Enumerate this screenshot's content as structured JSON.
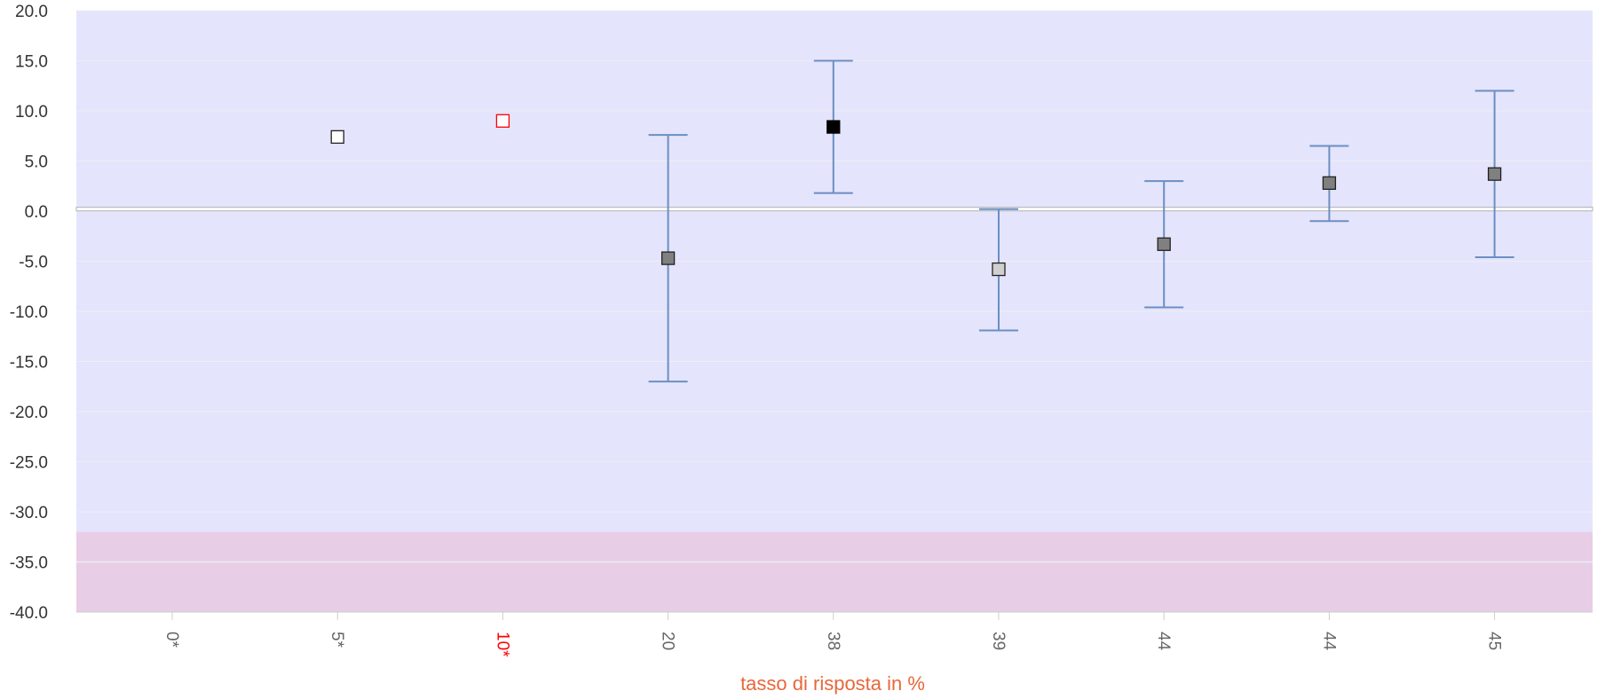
{
  "chart_data": {
    "type": "scatter",
    "title": "",
    "xlabel": "tasso di risposta in %",
    "ylabel": "",
    "ylim": [
      -40,
      20
    ],
    "yticks": [
      20,
      15,
      10,
      5,
      0,
      -5,
      -10,
      -15,
      -20,
      -25,
      -30,
      -35,
      -40
    ],
    "ytick_labels": [
      "20.0",
      "15.0",
      "10.0",
      "5.0",
      "0.0",
      "-5.0",
      "-10.0",
      "-15.0",
      "-20.0",
      "-25.0",
      "-30.0",
      "-35.0",
      "-40.0"
    ],
    "grid": true,
    "reference_line": 0.2,
    "bands": [
      {
        "from": -32,
        "to": 20,
        "color": "#e4e4fc"
      },
      {
        "from": -40,
        "to": -32,
        "color": "#e8cde6"
      }
    ],
    "categories": [
      "0*",
      "5*",
      "10*",
      "20",
      "38",
      "39",
      "44",
      "44",
      "45"
    ],
    "category_colors": [
      "#666666",
      "#666666",
      "#ff0000",
      "#666666",
      "#666666",
      "#666666",
      "#666666",
      "#666666",
      "#666666"
    ],
    "points": [
      {
        "category": "0*",
        "value": null,
        "low": null,
        "high": null,
        "fill": "none",
        "stroke": "none"
      },
      {
        "category": "5*",
        "value": 7.4,
        "low": null,
        "high": null,
        "fill": "#ffffff",
        "stroke": "#222222"
      },
      {
        "category": "10*",
        "value": 9.0,
        "low": null,
        "high": null,
        "fill": "#ffffff",
        "stroke": "#ff0000"
      },
      {
        "category": "20",
        "value": -4.7,
        "low": -17.0,
        "high": 7.6,
        "fill": "#808080",
        "stroke": "#222222"
      },
      {
        "category": "38",
        "value": 8.4,
        "low": 1.8,
        "high": 15.0,
        "fill": "#000000",
        "stroke": "#000000"
      },
      {
        "category": "39",
        "value": -5.8,
        "low": -11.9,
        "high": 0.2,
        "fill": "#d0d0d0",
        "stroke": "#222222"
      },
      {
        "category": "44",
        "value": -3.3,
        "low": -9.6,
        "high": 3.0,
        "fill": "#808080",
        "stroke": "#222222"
      },
      {
        "category": "44",
        "value": 2.8,
        "low": -1.0,
        "high": 6.5,
        "fill": "#808080",
        "stroke": "#222222"
      },
      {
        "category": "45",
        "value": 3.7,
        "low": -4.6,
        "high": 12.0,
        "fill": "#808080",
        "stroke": "#222222"
      }
    ],
    "errorbar_color": "#6b8fc2",
    "xlabel_color": "#e8673a"
  }
}
